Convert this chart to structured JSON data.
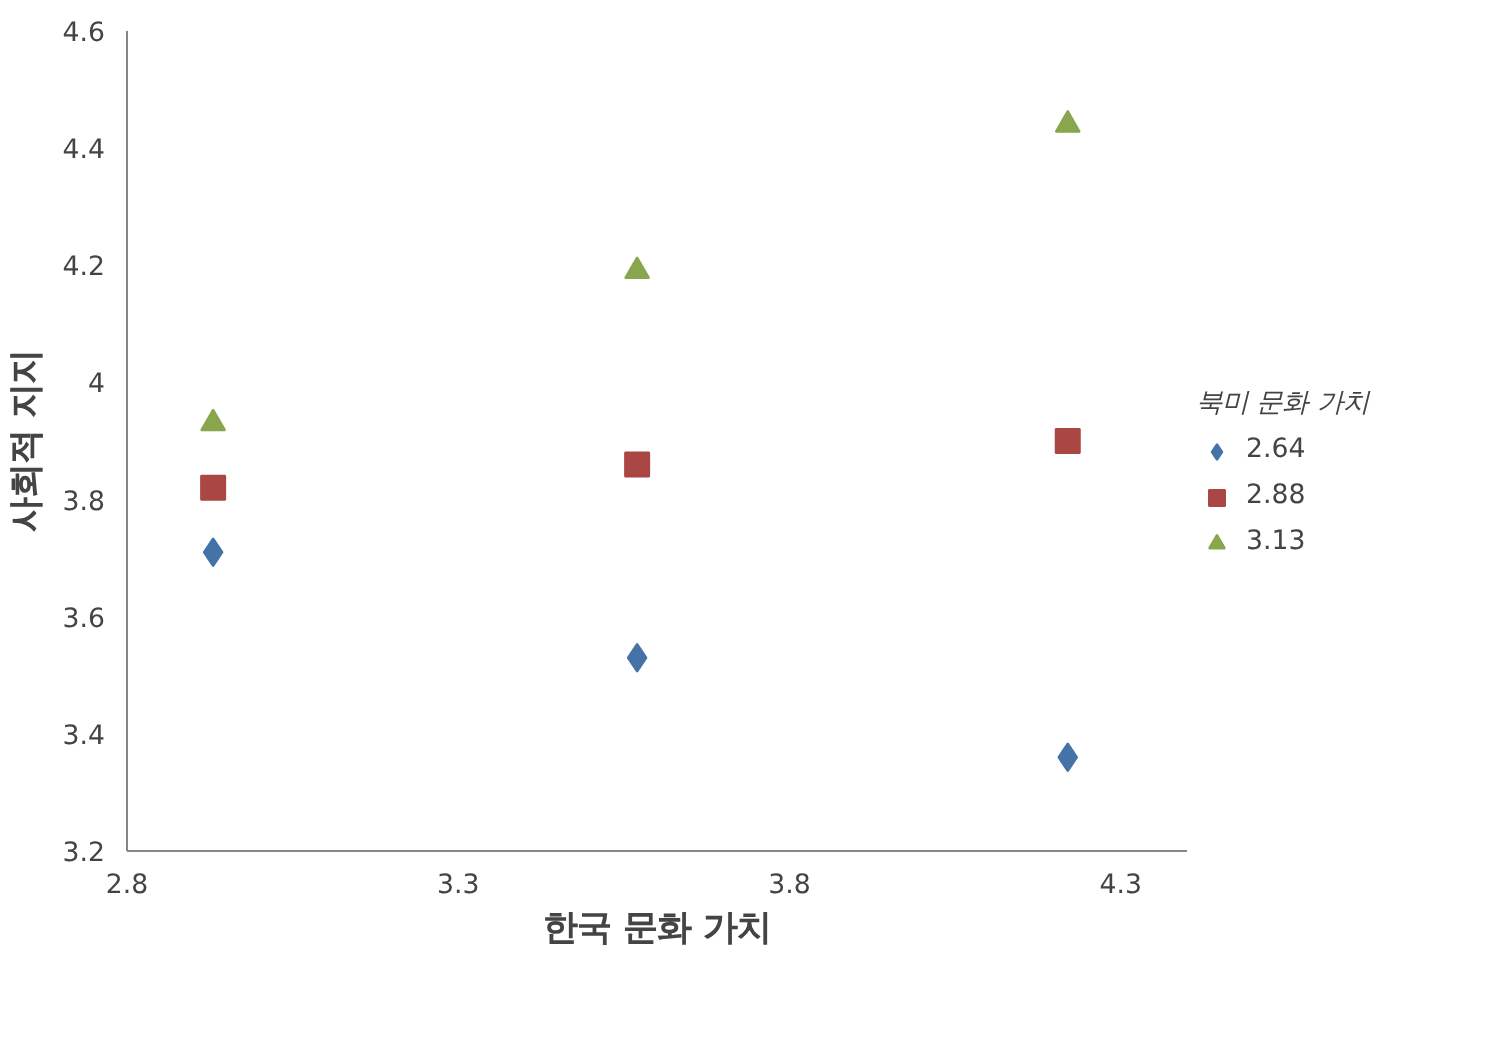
{
  "chart_data": {
    "type": "scatter",
    "xlabel": "한국 문화 가치",
    "ylabel": "사회적 지지",
    "legend_title": "북미 문화 가치",
    "legend": "right",
    "grid": false,
    "xlim": [
      2.8,
      4.4
    ],
    "xticks": [
      2.8,
      3.3,
      3.8,
      4.3
    ],
    "ylim": [
      3.2,
      4.6
    ],
    "yticks": [
      3.2,
      3.4,
      3.6,
      3.8,
      4,
      4.2,
      4.4,
      4.6
    ],
    "series": [
      {
        "name": "2.64",
        "color": "#4572a7",
        "marker": "diamond",
        "x": [
          2.93,
          3.57,
          4.22
        ],
        "values": [
          3.71,
          3.53,
          3.36
        ]
      },
      {
        "name": "2.88",
        "color": "#aa4643",
        "marker": "square",
        "x": [
          2.93,
          3.57,
          4.22
        ],
        "values": [
          3.82,
          3.86,
          3.9
        ]
      },
      {
        "name": "3.13",
        "color": "#89a54e",
        "marker": "triangle",
        "x": [
          2.93,
          3.57,
          4.22
        ],
        "values": [
          3.93,
          4.19,
          4.44
        ]
      }
    ]
  }
}
